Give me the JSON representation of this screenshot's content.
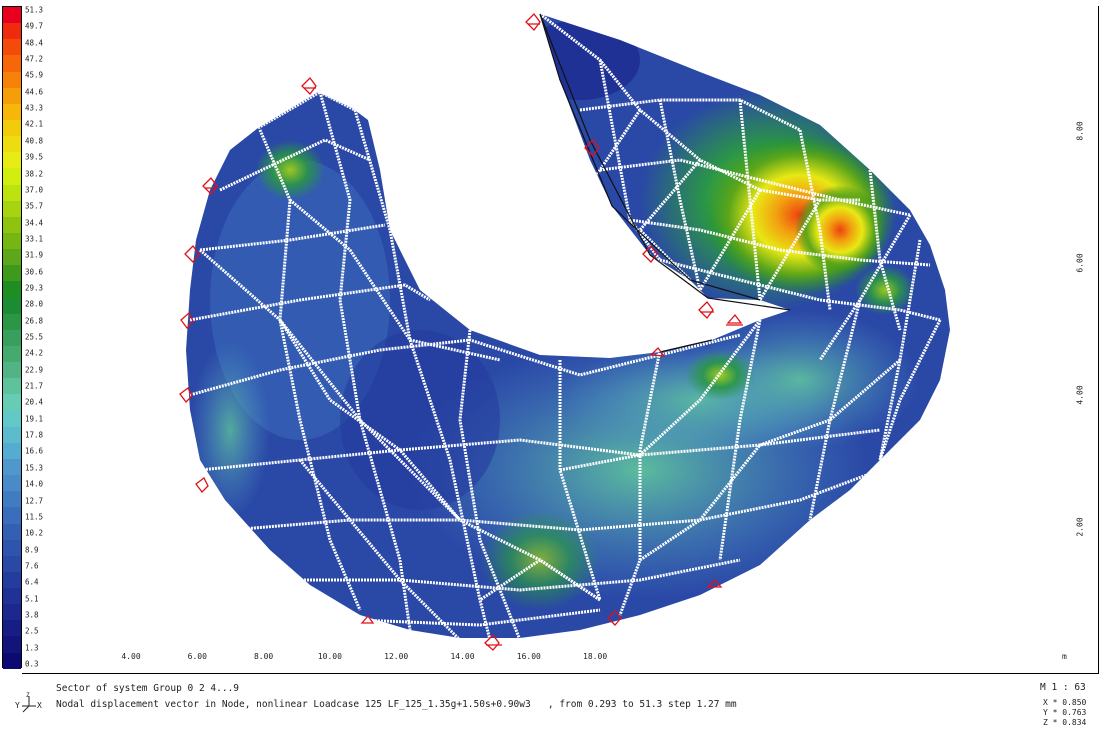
{
  "legend": {
    "labels": [
      "51.3",
      "49.7",
      "48.4",
      "47.2",
      "45.9",
      "44.6",
      "43.3",
      "42.1",
      "40.8",
      "39.5",
      "38.2",
      "37.0",
      "35.7",
      "34.4",
      "33.1",
      "31.9",
      "30.6",
      "29.3",
      "28.0",
      "26.8",
      "25.5",
      "24.2",
      "22.9",
      "21.7",
      "20.4",
      "19.1",
      "17.8",
      "16.6",
      "15.3",
      "14.0",
      "12.7",
      "11.5",
      "10.2",
      "8.9",
      "7.6",
      "6.4",
      "5.1",
      "3.8",
      "2.5",
      "1.3",
      "0.3"
    ],
    "colors": [
      "#e8001e",
      "#f02a0c",
      "#f44a0a",
      "#f6660a",
      "#f6820a",
      "#f69e0a",
      "#f6b60a",
      "#f2cc0c",
      "#ecdc10",
      "#e6ec14",
      "#d2ee10",
      "#bce210",
      "#a6d410",
      "#8ec410",
      "#76b614",
      "#5ea61a",
      "#3e9a1c",
      "#1e8e22",
      "#1c8c32",
      "#2a9646",
      "#38a05c",
      "#44aa6e",
      "#52b484",
      "#5ec29c",
      "#66ccb4",
      "#62c8c8",
      "#5cbccc",
      "#56acd0",
      "#5098cc",
      "#4a8ac8",
      "#427cc0",
      "#3a6ebc",
      "#3460b4",
      "#2e54ae",
      "#2a48a6",
      "#243c9e",
      "#203296",
      "#1c288e",
      "#161e86",
      "#12147c",
      "#0c0a72"
    ]
  },
  "axes": {
    "x_ticks": [
      "4.00",
      "6.00",
      "8.00",
      "10.00",
      "12.00",
      "14.00",
      "16.00",
      "18.00"
    ],
    "x_unit": "m",
    "y_ticks": [
      "8.00",
      "6.00",
      "4.00",
      "2.00"
    ]
  },
  "footer": {
    "axis_label": "Y Z X",
    "line1": "Sector of system Group 0 2 4...9",
    "line2": "Nodal displacement vector in Node, nonlinear Loadcase 125 LF_125_1.35g+1.50s+0.90w3   , from 0.293 to 51.3 step 1.27 mm",
    "scale": "M 1 : 63",
    "x": "X * 0.850",
    "y": "Y * 0.763",
    "z": "Z * 0.834"
  }
}
